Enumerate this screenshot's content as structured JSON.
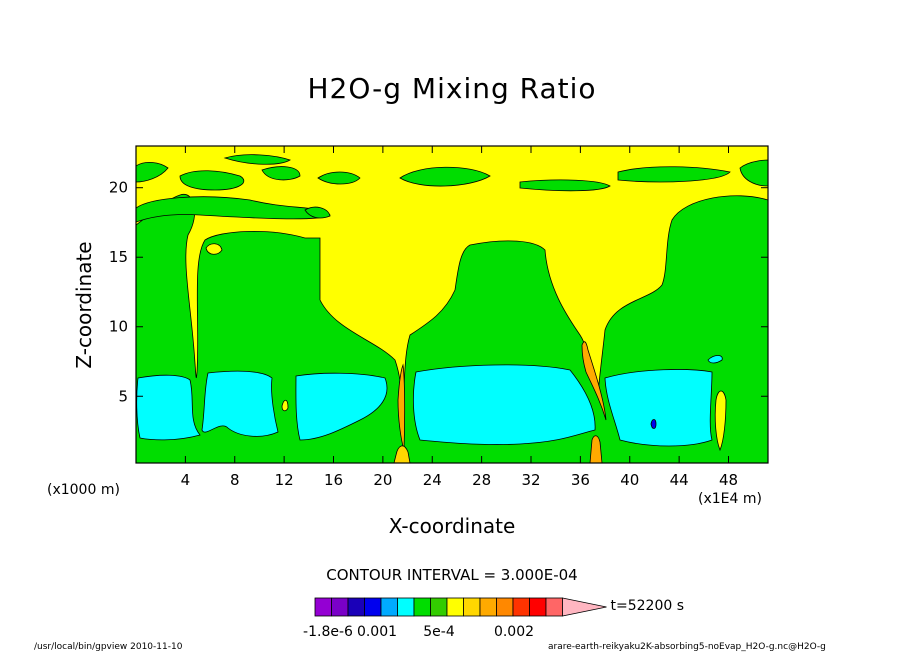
{
  "chart_data": {
    "type": "heatmap",
    "title": "H2O-g Mixing Ratio",
    "xlabel": "X-coordinate",
    "ylabel": "Z-coordinate",
    "x_unit": "(x1E4 m)",
    "y_unit": "(x1000 m)",
    "x_ticks": [
      "4",
      "8",
      "12",
      "16",
      "20",
      "24",
      "28",
      "32",
      "36",
      "40",
      "44",
      "48"
    ],
    "x_tick_values": [
      4,
      8,
      12,
      16,
      20,
      24,
      28,
      32,
      36,
      40,
      44,
      48
    ],
    "y_ticks": [
      "5",
      "10",
      "15",
      "20"
    ],
    "y_tick_values": [
      5,
      10,
      15,
      20
    ],
    "xlim": [
      0,
      51.2
    ],
    "ylim": [
      0.2,
      23
    ],
    "contour_interval": "CONTOUR INTERVAL = 3.000E-04",
    "time_label": "t=52200 s",
    "colorbar_labels": [
      "-1.8e-6",
      "0.001",
      "5e-4",
      "0.002"
    ],
    "colorbar_colors": [
      "#9400d3",
      "#7a00c8",
      "#1a00b8",
      "#0000ee",
      "#00aaff",
      "#00ffff",
      "#00dd00",
      "#33cc00",
      "#ffff00",
      "#ffd700",
      "#ffaa00",
      "#ff8800",
      "#ff3300",
      "#ff0000",
      "#ff6666",
      "#ffb6c1"
    ],
    "regions": [
      {
        "name": "background",
        "color": "#ffff00"
      },
      {
        "name": "moist-layer",
        "color": "#00dd00"
      },
      {
        "name": "wet-cell",
        "color": "#00ffff"
      },
      {
        "name": "updraft-core",
        "color": "#ffaa00"
      },
      {
        "name": "dry-core",
        "color": "#0000ee"
      }
    ]
  },
  "footer": {
    "left": "/usr/local/bin/gpview  2010-11-10",
    "right": "arare-earth-reikyaku2K-absorbing5-noEvap_H2O-g.nc@H2O-g"
  }
}
